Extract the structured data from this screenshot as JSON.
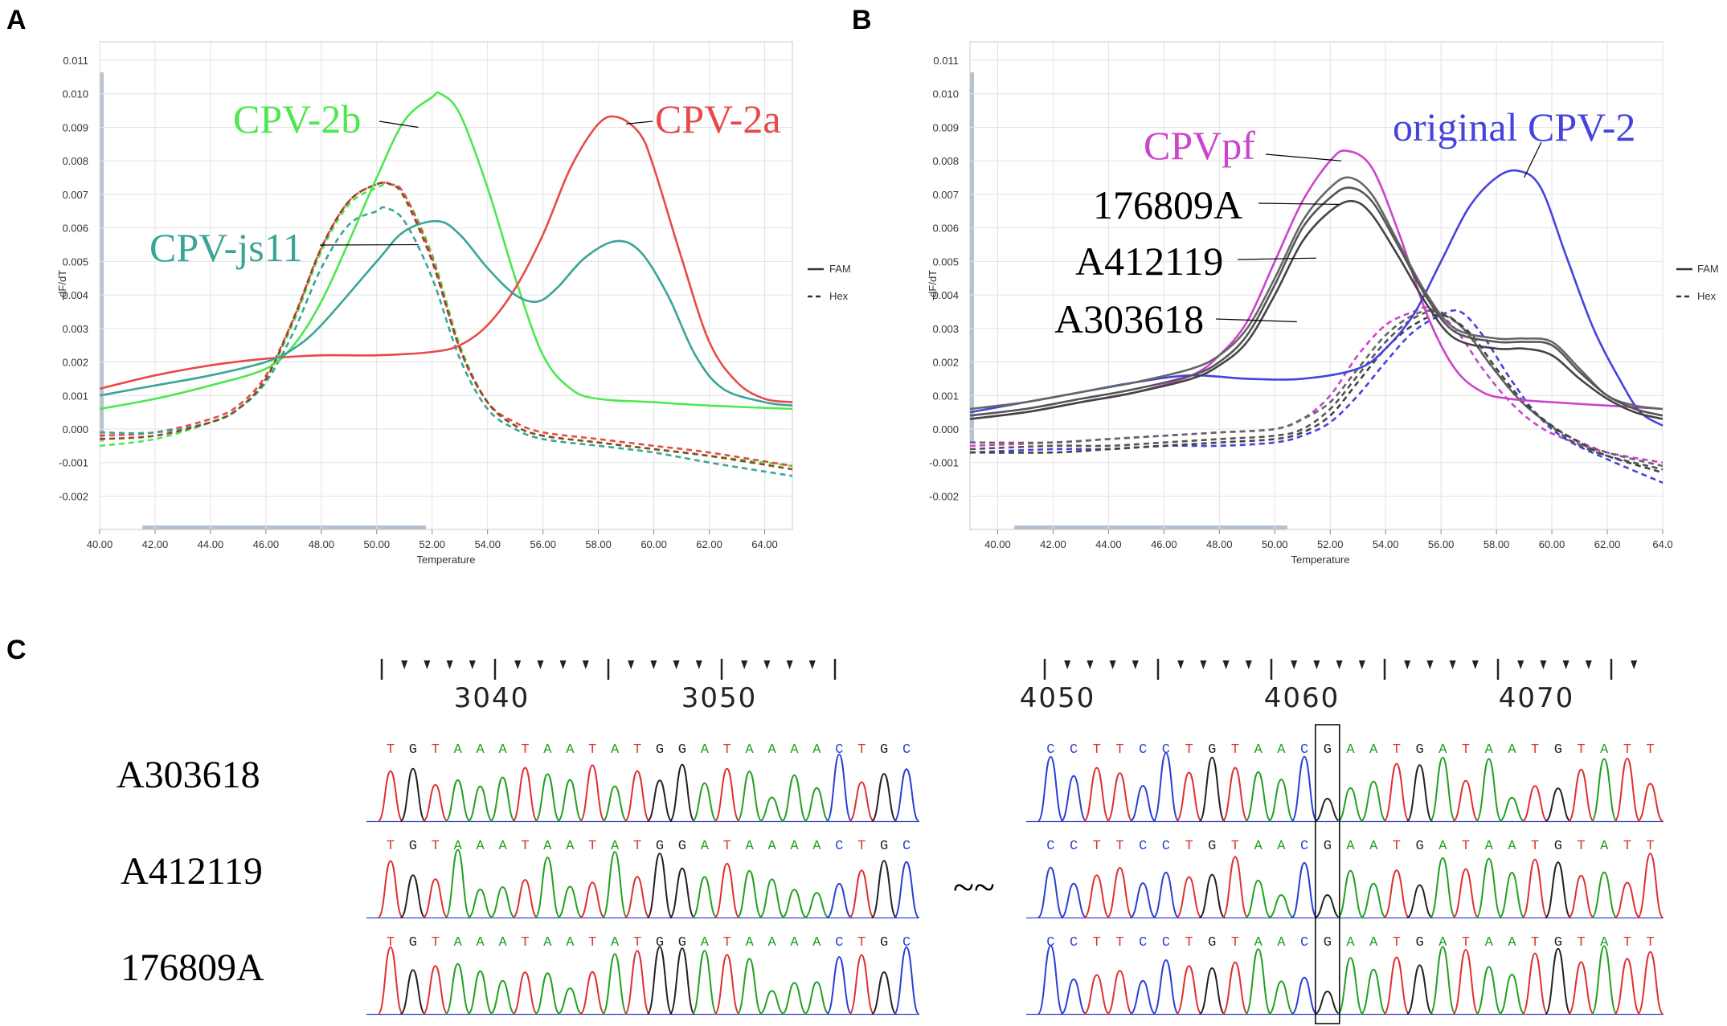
{
  "panels": [
    "A",
    "B",
    "C"
  ],
  "colors": {
    "fam_solid_legend": "#333333"
  },
  "chart_data": [
    {
      "type": "line",
      "panel": "A",
      "xlabel": "Temperature",
      "ylabel": "-dF/dT",
      "xlim": [
        40,
        65
      ],
      "ylim": [
        -0.0025,
        0.0112
      ],
      "xticks": [
        "40.00",
        "42.00",
        "44.00",
        "46.00",
        "48.00",
        "50.00",
        "52.00",
        "54.00",
        "56.00",
        "58.00",
        "60.00",
        "62.00",
        "64.00"
      ],
      "yticks": [
        "0.011",
        "0.010",
        "0.009",
        "0.008",
        "0.007",
        "0.006",
        "0.005",
        "0.004",
        "0.003",
        "0.002",
        "0.001",
        "0.000",
        "-0.001",
        "-0.002"
      ],
      "legend": [
        {
          "label": "FAM",
          "style": "solid"
        },
        {
          "label": "Hex",
          "style": "dashed"
        }
      ],
      "series": [
        {
          "name": "CPV-2b",
          "style": "solid",
          "color": "#4de84d",
          "x": [
            40,
            42,
            44,
            46,
            47,
            48,
            49,
            50,
            51,
            52,
            52.3,
            53,
            54,
            55,
            56,
            57,
            58,
            60,
            62,
            65
          ],
          "y": [
            0.0006,
            0.0009,
            0.0013,
            0.0018,
            0.0025,
            0.0038,
            0.0056,
            0.0075,
            0.0092,
            0.0099,
            0.01,
            0.0094,
            0.0072,
            0.0045,
            0.0022,
            0.0012,
            0.0009,
            0.0008,
            0.0007,
            0.0006
          ]
        },
        {
          "name": "CPV-2a",
          "style": "solid",
          "color": "#e84a4a",
          "x": [
            40,
            42,
            44,
            46,
            48,
            50,
            52,
            53,
            54,
            55,
            56,
            57,
            58,
            58.7,
            59.5,
            60,
            61,
            62,
            63,
            64,
            65
          ],
          "y": [
            0.0012,
            0.0016,
            0.0019,
            0.0021,
            0.0022,
            0.0022,
            0.0023,
            0.0025,
            0.0031,
            0.0042,
            0.0058,
            0.0078,
            0.0091,
            0.0093,
            0.0088,
            0.0078,
            0.0051,
            0.0026,
            0.0014,
            0.0009,
            0.0008
          ]
        },
        {
          "name": "CPV-js11",
          "style": "solid",
          "color": "#3aa597",
          "x": [
            40,
            42,
            44,
            46,
            47,
            48,
            50,
            51,
            52.2,
            53,
            54,
            55,
            55.8,
            56.5,
            57.5,
            58.6,
            59.5,
            60.5,
            61.5,
            62.5,
            64,
            65
          ],
          "y": [
            0.001,
            0.0013,
            0.0016,
            0.002,
            0.0024,
            0.0031,
            0.005,
            0.0059,
            0.0062,
            0.0058,
            0.0048,
            0.004,
            0.0038,
            0.0042,
            0.0051,
            0.0056,
            0.0053,
            0.004,
            0.0022,
            0.0012,
            0.0008,
            0.0007
          ]
        },
        {
          "name": "CPV-2b Hex",
          "style": "dashed",
          "color": "#4de84d",
          "x": [
            40,
            42,
            44,
            45,
            46,
            47,
            48,
            49,
            50,
            50.5,
            51,
            52,
            53,
            54,
            55,
            56,
            58,
            60,
            62,
            65
          ],
          "y": [
            -0.0005,
            -0.0003,
            0.0002,
            0.0006,
            0.0015,
            0.0032,
            0.0053,
            0.0067,
            0.0072,
            0.0073,
            0.007,
            0.0052,
            0.0025,
            0.0008,
            0.0001,
            -0.0002,
            -0.0004,
            -0.0006,
            -0.0008,
            -0.0011
          ]
        },
        {
          "name": "CPV-2a Hex",
          "style": "dashed",
          "color": "#e84a4a",
          "x": [
            40,
            42,
            44,
            45,
            46,
            47,
            48,
            49,
            50,
            50.5,
            51,
            52,
            53,
            54,
            55,
            56,
            58,
            60,
            62,
            65
          ],
          "y": [
            -0.0002,
            -0.0001,
            0.0003,
            0.0007,
            0.0016,
            0.0033,
            0.0054,
            0.0068,
            0.0073,
            0.0073,
            0.007,
            0.0051,
            0.0024,
            0.0008,
            0.0002,
            -0.0001,
            -0.0003,
            -0.0005,
            -0.0007,
            -0.0011
          ]
        },
        {
          "name": "CPV-js11 Hex",
          "style": "dashed",
          "color": "#3aa597",
          "x": [
            40,
            42,
            44,
            45,
            46,
            47,
            48,
            49,
            50,
            50.3,
            51,
            52,
            53,
            54,
            55,
            56,
            58,
            60,
            62,
            65
          ],
          "y": [
            -0.0001,
            -0.0001,
            0.0002,
            0.0006,
            0.0014,
            0.0029,
            0.0048,
            0.0061,
            0.0065,
            0.0066,
            0.0062,
            0.0045,
            0.0021,
            0.0006,
            0.0,
            -0.0003,
            -0.0005,
            -0.0007,
            -0.001,
            -0.0014
          ]
        },
        {
          "name": "CPV-js11 Hex (red trace)",
          "style": "dashed",
          "color": "#8b4a2a",
          "x": [
            40,
            42,
            44,
            45,
            46,
            47,
            48,
            49,
            50,
            50.5,
            51,
            52,
            53,
            54,
            55,
            56,
            58,
            60,
            62,
            65
          ],
          "y": [
            -0.0003,
            -0.0002,
            0.0002,
            0.0006,
            0.0015,
            0.0033,
            0.0054,
            0.0068,
            0.0073,
            0.0073,
            0.0069,
            0.005,
            0.0024,
            0.0008,
            0.0001,
            -0.0002,
            -0.0004,
            -0.0006,
            -0.0008,
            -0.0012
          ]
        }
      ],
      "annotations": [
        {
          "text": "CPV-2b",
          "color": "#4de84d",
          "target_x": 51.5,
          "target_y": 0.009
        },
        {
          "text": "CPV-2a",
          "color": "#e84a4a",
          "target_x": 59.0,
          "target_y": 0.0091
        },
        {
          "text": "CPV-js11",
          "color": "#3aa597",
          "target_x": 51.5,
          "target_y": 0.0055
        }
      ]
    },
    {
      "type": "line",
      "panel": "B",
      "xlabel": "Temperature",
      "ylabel": "-dF/dT",
      "xlim": [
        39,
        64
      ],
      "ylim": [
        -0.0025,
        0.0112
      ],
      "xticks": [
        "40.00",
        "42.00",
        "44.00",
        "46.00",
        "48.00",
        "50.00",
        "52.00",
        "54.00",
        "56.00",
        "58.00",
        "60.00",
        "62.00",
        "64.0"
      ],
      "yticks": [
        "0.011",
        "0.010",
        "0.009",
        "0.008",
        "0.007",
        "0.006",
        "0.005",
        "0.004",
        "0.003",
        "0.002",
        "0.001",
        "0.000",
        "-0.001",
        "-0.002"
      ],
      "legend": [
        {
          "label": "FAM",
          "style": "solid"
        },
        {
          "label": "Hex",
          "style": "dashed"
        }
      ],
      "series": [
        {
          "name": "CPVpf",
          "style": "solid",
          "color": "#cc44cc",
          "x": [
            39,
            41,
            43,
            45,
            47,
            48,
            49,
            50,
            51,
            52,
            52.6,
            53.5,
            54.5,
            55.5,
            56.5,
            57.5,
            58.5,
            60,
            62,
            64
          ],
          "y": [
            0.0003,
            0.0005,
            0.0008,
            0.0011,
            0.0016,
            0.0022,
            0.0032,
            0.005,
            0.0068,
            0.008,
            0.0083,
            0.0078,
            0.0058,
            0.0034,
            0.0018,
            0.0011,
            0.0009,
            0.0008,
            0.0007,
            0.0006
          ]
        },
        {
          "name": "original CPV-2",
          "style": "solid",
          "color": "#4444dd",
          "x": [
            39,
            41,
            43,
            45,
            47,
            49,
            51,
            53,
            54,
            55,
            56,
            57,
            58,
            58.8,
            59.6,
            60.5,
            61.5,
            62.5,
            63.2,
            64
          ],
          "y": [
            0.0005,
            0.0008,
            0.0011,
            0.0014,
            0.0016,
            0.0015,
            0.0015,
            0.0018,
            0.0024,
            0.0034,
            0.005,
            0.0066,
            0.0075,
            0.0077,
            0.0072,
            0.0052,
            0.003,
            0.0014,
            0.0005,
            0.0001
          ]
        },
        {
          "name": "176809A",
          "style": "solid",
          "color": "#666666",
          "x": [
            39,
            41,
            43,
            45,
            47,
            48,
            49,
            50,
            51,
            52,
            52.7,
            53.5,
            54.5,
            55.5,
            56.5,
            58,
            59,
            60,
            61,
            62,
            63,
            64
          ],
          "y": [
            0.0006,
            0.0008,
            0.0011,
            0.0014,
            0.0018,
            0.0022,
            0.003,
            0.0045,
            0.0062,
            0.0072,
            0.0075,
            0.007,
            0.0055,
            0.004,
            0.003,
            0.0027,
            0.0027,
            0.0026,
            0.0018,
            0.001,
            0.0007,
            0.0006
          ]
        },
        {
          "name": "A412119",
          "style": "solid",
          "color": "#555555",
          "x": [
            39,
            41,
            43,
            45,
            47,
            48,
            49,
            50,
            51,
            52,
            52.7,
            53.5,
            54.5,
            55.5,
            56.5,
            58,
            59,
            60,
            61,
            62,
            63,
            64
          ],
          "y": [
            0.0004,
            0.0006,
            0.0009,
            0.0012,
            0.0016,
            0.002,
            0.0028,
            0.0043,
            0.006,
            0.0069,
            0.0072,
            0.0068,
            0.0054,
            0.0039,
            0.0029,
            0.0026,
            0.0026,
            0.0025,
            0.0017,
            0.001,
            0.0006,
            0.0004
          ]
        },
        {
          "name": "A303618",
          "style": "solid",
          "color": "#444444",
          "x": [
            39,
            41,
            43,
            45,
            47,
            48,
            49,
            50,
            51,
            52,
            52.8,
            53.5,
            54.5,
            55.5,
            56.5,
            58,
            59,
            60,
            61,
            62,
            63,
            64
          ],
          "y": [
            0.0003,
            0.0005,
            0.0008,
            0.0011,
            0.0015,
            0.0019,
            0.0026,
            0.004,
            0.0056,
            0.0065,
            0.0068,
            0.0064,
            0.0051,
            0.0037,
            0.0027,
            0.0024,
            0.0024,
            0.0022,
            0.0015,
            0.0009,
            0.0005,
            0.0003
          ]
        },
        {
          "name": "CPVpf Hex",
          "style": "dashed",
          "color": "#cc44cc",
          "x": [
            39,
            42,
            44,
            46,
            48,
            50,
            51,
            52,
            53,
            54,
            55,
            55.6,
            56.5,
            57.5,
            58.5,
            59.5,
            60.5,
            62,
            64
          ],
          "y": [
            -0.0005,
            -0.0004,
            -0.0003,
            -0.0002,
            -0.0001,
            0.0,
            0.0003,
            0.001,
            0.0022,
            0.0031,
            0.0035,
            0.0036,
            0.003,
            0.0018,
            0.0008,
            0.0001,
            -0.0003,
            -0.0007,
            -0.001
          ]
        },
        {
          "name": "original CPV-2 Hex",
          "style": "dashed",
          "color": "#4444dd",
          "x": [
            39,
            42,
            44,
            46,
            48,
            50,
            51,
            52,
            53,
            54,
            55,
            56,
            56.7,
            57.5,
            58.5,
            59.5,
            60.5,
            62,
            64
          ],
          "y": [
            -0.0007,
            -0.0006,
            -0.0006,
            -0.0005,
            -0.0005,
            -0.0004,
            -0.0002,
            0.0002,
            0.001,
            0.002,
            0.0029,
            0.0034,
            0.0035,
            0.0028,
            0.0015,
            0.0004,
            -0.0003,
            -0.0009,
            -0.0016
          ]
        },
        {
          "name": "176809A Hex",
          "style": "dashed",
          "color": "#666666",
          "x": [
            39,
            42,
            44,
            46,
            48,
            50,
            51,
            52,
            53,
            54,
            55,
            55.8,
            56.8,
            57.8,
            58.8,
            59.8,
            60.8,
            62,
            64
          ],
          "y": [
            -0.0004,
            -0.0004,
            -0.0003,
            -0.0002,
            -0.0001,
            0.0,
            0.0003,
            0.0008,
            0.0018,
            0.0028,
            0.0034,
            0.0035,
            0.003,
            0.0019,
            0.0009,
            0.0002,
            -0.0003,
            -0.0007,
            -0.0011
          ]
        },
        {
          "name": "A412119 Hex",
          "style": "dashed",
          "color": "#555555",
          "x": [
            39,
            42,
            44,
            46,
            48,
            50,
            51,
            52,
            53,
            54,
            55,
            55.9,
            56.8,
            57.8,
            58.8,
            59.8,
            60.8,
            62,
            64
          ],
          "y": [
            -0.0006,
            -0.0005,
            -0.0005,
            -0.0004,
            -0.0003,
            -0.0002,
            0.0,
            0.0006,
            0.0016,
            0.0026,
            0.0033,
            0.0035,
            0.003,
            0.0019,
            0.0009,
            0.0002,
            -0.0004,
            -0.0008,
            -0.0012
          ]
        },
        {
          "name": "A303618 Hex",
          "style": "dashed",
          "color": "#444444",
          "x": [
            39,
            42,
            44,
            46,
            48,
            50,
            51,
            52,
            53,
            54,
            55,
            56,
            57,
            58,
            59,
            60,
            61,
            62,
            64
          ],
          "y": [
            -0.0007,
            -0.0007,
            -0.0006,
            -0.0005,
            -0.0004,
            -0.0003,
            -0.0001,
            0.0004,
            0.0014,
            0.0024,
            0.0031,
            0.0034,
            0.0029,
            0.0018,
            0.0008,
            0.0001,
            -0.0004,
            -0.0008,
            -0.0013
          ]
        }
      ],
      "annotations": [
        {
          "text": "CPVpf",
          "color": "#cc44cc",
          "target_x": 52.4,
          "target_y": 0.008
        },
        {
          "text": "original CPV-2",
          "color": "#4444dd",
          "target_x": 59.0,
          "target_y": 0.0075
        },
        {
          "text": "176809A",
          "color": "#000000",
          "target_x": 52.3,
          "target_y": 0.0067
        },
        {
          "text": "A412119",
          "color": "#000000",
          "target_x": 51.5,
          "target_y": 0.0051
        },
        {
          "text": "A303618",
          "color": "#000000",
          "target_x": 50.8,
          "target_y": 0.0032
        }
      ]
    }
  ],
  "sequencing": {
    "ruler_left": {
      "labels": [
        "3040",
        "3050"
      ],
      "start": 3035,
      "end": 3055
    },
    "ruler_right": {
      "labels": [
        "4050",
        "4060",
        "4070"
      ],
      "start": 4050,
      "end": 4076
    },
    "samples": [
      "A303618",
      "A412119",
      "176809A"
    ],
    "seq_left": "TGTAAATAATATGGATAAAACTGC",
    "seq_right": "CCTTCCTGTAACGAATGATAATGTATT",
    "highlight_right_index": 12,
    "separator": "~~",
    "base_colors": {
      "A": "#22a022",
      "T": "#e03030",
      "G": "#222222",
      "C": "#2a3fd6"
    }
  }
}
